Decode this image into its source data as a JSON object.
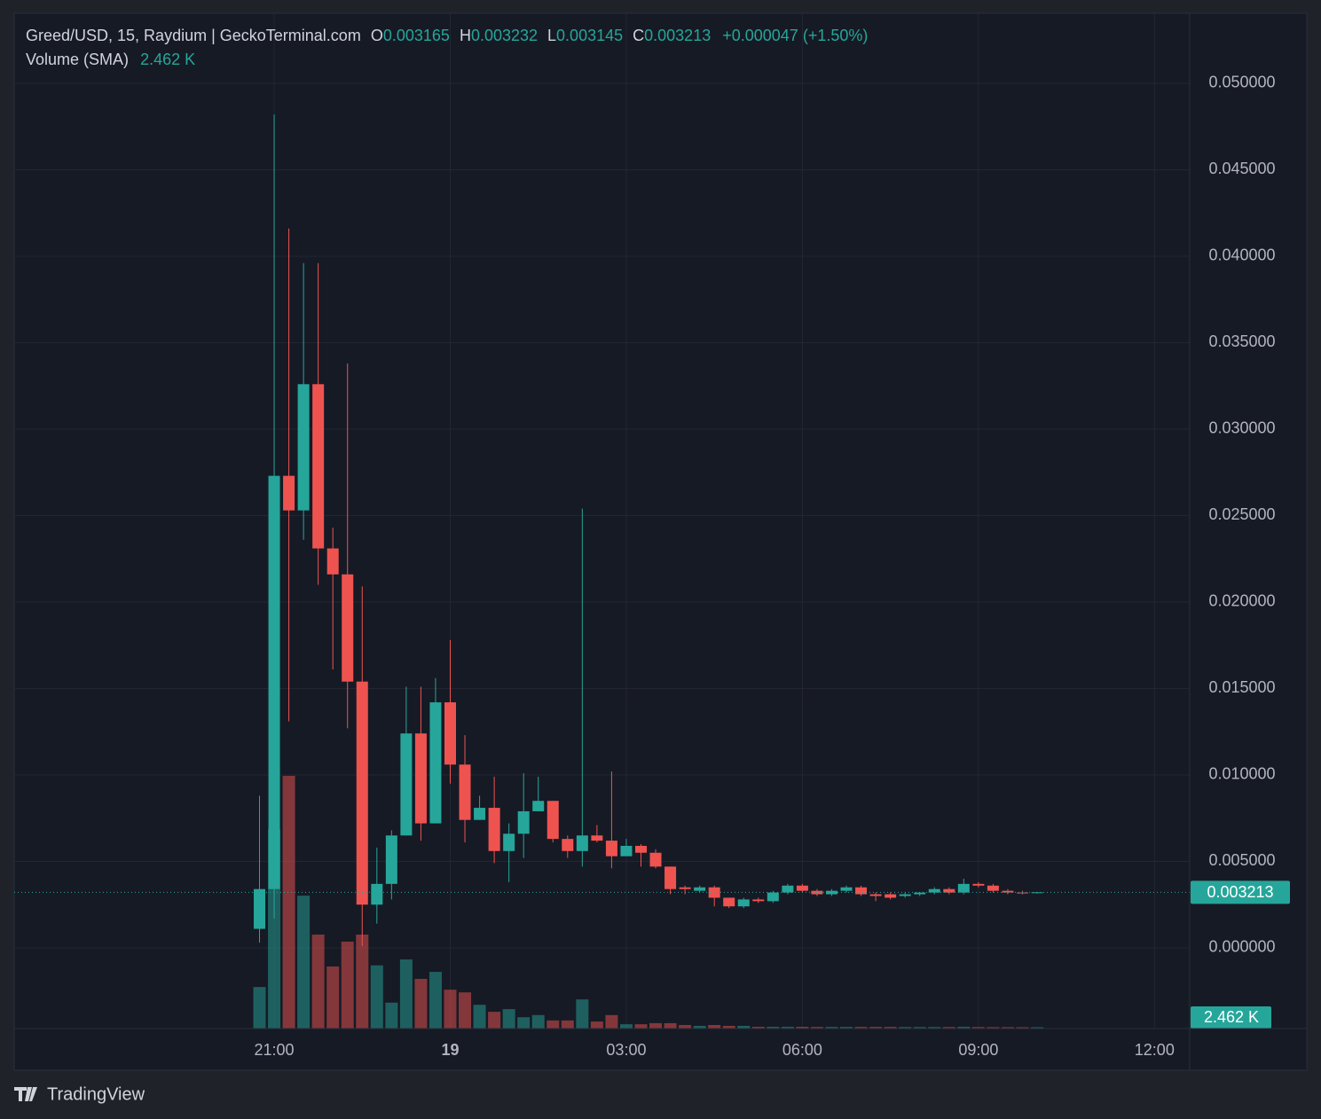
{
  "chart_data": {
    "type": "candlestick",
    "title": "Greed/USD, 15, Raydium | GeckoTerminal.com",
    "ohlc_labels": [
      "O",
      "H",
      "L",
      "C"
    ],
    "change_label": "+0.000047 (+1.50%)",
    "up_color": "#26a69a",
    "down_color": "#ef5350",
    "x": [
      20.75,
      21,
      21.25,
      21.5,
      21.75,
      22,
      22.25,
      22.5,
      22.75,
      23,
      23.25,
      23.5,
      23.75,
      24,
      24.25,
      24.5,
      24.75,
      25,
      25.25,
      25.5,
      25.75,
      26,
      26.25,
      26.5,
      26.75,
      27,
      27.25,
      27.5,
      27.75,
      28,
      28.25,
      28.5,
      28.75,
      29,
      29.25,
      29.5,
      29.75,
      30,
      30.25,
      30.5,
      30.75,
      31,
      31.25,
      31.5,
      31.75,
      32,
      32.25,
      32.5,
      32.75,
      33,
      33.25,
      33.5,
      33.75,
      34
    ],
    "open": [
      0.0011,
      0.0034,
      0.0273,
      0.0253,
      0.0326,
      0.0231,
      0.0216,
      0.0154,
      0.0025,
      0.0037,
      0.0065,
      0.0124,
      0.0072,
      0.0142,
      0.0106,
      0.0074,
      0.0081,
      0.0056,
      0.0066,
      0.0079,
      0.0085,
      0.0063,
      0.0056,
      0.0065,
      0.0062,
      0.0053,
      0.0059,
      0.0055,
      0.0047,
      0.0035,
      0.0033,
      0.0035,
      0.0029,
      0.0024,
      0.0028,
      0.0027,
      0.0032,
      0.0036,
      0.0033,
      0.0031,
      0.0033,
      0.0035,
      0.0031,
      0.0031,
      0.003,
      0.0031,
      0.0032,
      0.0034,
      0.0032,
      0.0037,
      0.0036,
      0.0033,
      0.0032,
      0.003165
    ],
    "high": [
      0.0088,
      0.0482,
      0.0416,
      0.0396,
      0.0396,
      0.0243,
      0.0338,
      0.0209,
      0.0058,
      0.0068,
      0.0151,
      0.0151,
      0.0156,
      0.0178,
      0.0123,
      0.0088,
      0.0099,
      0.0072,
      0.0101,
      0.0099,
      0.0085,
      0.0065,
      0.0254,
      0.0071,
      0.0102,
      0.0063,
      0.006,
      0.0057,
      0.0047,
      0.0036,
      0.0036,
      0.0036,
      0.0029,
      0.0029,
      0.0029,
      0.0033,
      0.0037,
      0.0037,
      0.0034,
      0.0034,
      0.0036,
      0.0036,
      0.0032,
      0.0032,
      0.0032,
      0.0032,
      0.0035,
      0.0035,
      0.004,
      0.0038,
      0.0037,
      0.0034,
      0.0033,
      0.003232
    ],
    "low": [
      0.0003,
      0.0017,
      0.0131,
      0.0236,
      0.021,
      0.0161,
      0.0127,
      0.0001,
      0.0014,
      0.0028,
      0.0065,
      0.0062,
      0.0072,
      0.0095,
      0.0061,
      0.0074,
      0.0049,
      0.0038,
      0.0052,
      0.0079,
      0.0061,
      0.0052,
      0.0047,
      0.0061,
      0.0046,
      0.0053,
      0.0047,
      0.0046,
      0.0031,
      0.0031,
      0.0032,
      0.0024,
      0.0023,
      0.0023,
      0.0026,
      0.0026,
      0.0031,
      0.0032,
      0.003,
      0.003,
      0.0032,
      0.003,
      0.0027,
      0.0028,
      0.0029,
      0.003,
      0.0031,
      0.0031,
      0.0031,
      0.0035,
      0.0032,
      0.0031,
      0.0031,
      0.003145
    ],
    "close": [
      0.0034,
      0.0273,
      0.0253,
      0.0326,
      0.0231,
      0.0216,
      0.0154,
      0.0025,
      0.0037,
      0.0065,
      0.0124,
      0.0072,
      0.0142,
      0.0106,
      0.0074,
      0.0081,
      0.0056,
      0.0066,
      0.0079,
      0.0085,
      0.0063,
      0.0056,
      0.0065,
      0.0062,
      0.0053,
      0.0059,
      0.0055,
      0.0047,
      0.0034,
      0.0034,
      0.0035,
      0.0029,
      0.0024,
      0.0028,
      0.0027,
      0.0032,
      0.0036,
      0.0033,
      0.0031,
      0.0033,
      0.0035,
      0.0031,
      0.003,
      0.0029,
      0.0031,
      0.0032,
      0.0034,
      0.0032,
      0.0037,
      0.0036,
      0.0033,
      0.0032,
      0.00315,
      0.003213
    ],
    "volume": {
      "name": "Volume (SMA)",
      "axis": "y2",
      "value_label": "2.462 K",
      "values": [
        77000,
        369000,
        468000,
        246000,
        174000,
        115000,
        161000,
        174000,
        117000,
        48000,
        128000,
        92000,
        105000,
        72000,
        67000,
        44000,
        31000,
        36000,
        21000,
        25000,
        15000,
        15000,
        54000,
        13000,
        25000,
        8000,
        8000,
        10000,
        10000,
        6600,
        5000,
        6600,
        5000,
        5000,
        3300,
        3300,
        3300,
        3300,
        3000,
        3000,
        3000,
        3000,
        3000,
        3000,
        2800,
        2800,
        2800,
        2800,
        3300,
        2800,
        2600,
        2600,
        2500,
        2462
      ]
    },
    "xlim": [
      16.57,
      36.6
    ],
    "xticks": [
      {
        "value": 21,
        "label": "21:00"
      },
      {
        "value": 24,
        "label": "19"
      },
      {
        "value": 27,
        "label": "03:00"
      },
      {
        "value": 30,
        "label": "06:00"
      },
      {
        "value": 33,
        "label": "09:00"
      },
      {
        "value": 36,
        "label": "12:00"
      }
    ],
    "ylim": [
      -0.004667,
      0.05405
    ],
    "yticks": [
      {
        "value": 0,
        "label": "0.000000"
      },
      {
        "value": 0.005,
        "label": "0.005000"
      },
      {
        "value": 0.01,
        "label": "0.010000"
      },
      {
        "value": 0.015,
        "label": "0.015000"
      },
      {
        "value": 0.02,
        "label": "0.020000"
      },
      {
        "value": 0.025,
        "label": "0.025000"
      },
      {
        "value": 0.03,
        "label": "0.030000"
      },
      {
        "value": 0.035,
        "label": "0.035000"
      },
      {
        "value": 0.04,
        "label": "0.040000"
      },
      {
        "value": 0.045,
        "label": "0.045000"
      },
      {
        "value": 0.05,
        "label": "0.050000"
      }
    ],
    "y2lim": [
      0,
      1880000
    ],
    "grid": true,
    "last_price_line": true
  },
  "brand": "TradingView"
}
